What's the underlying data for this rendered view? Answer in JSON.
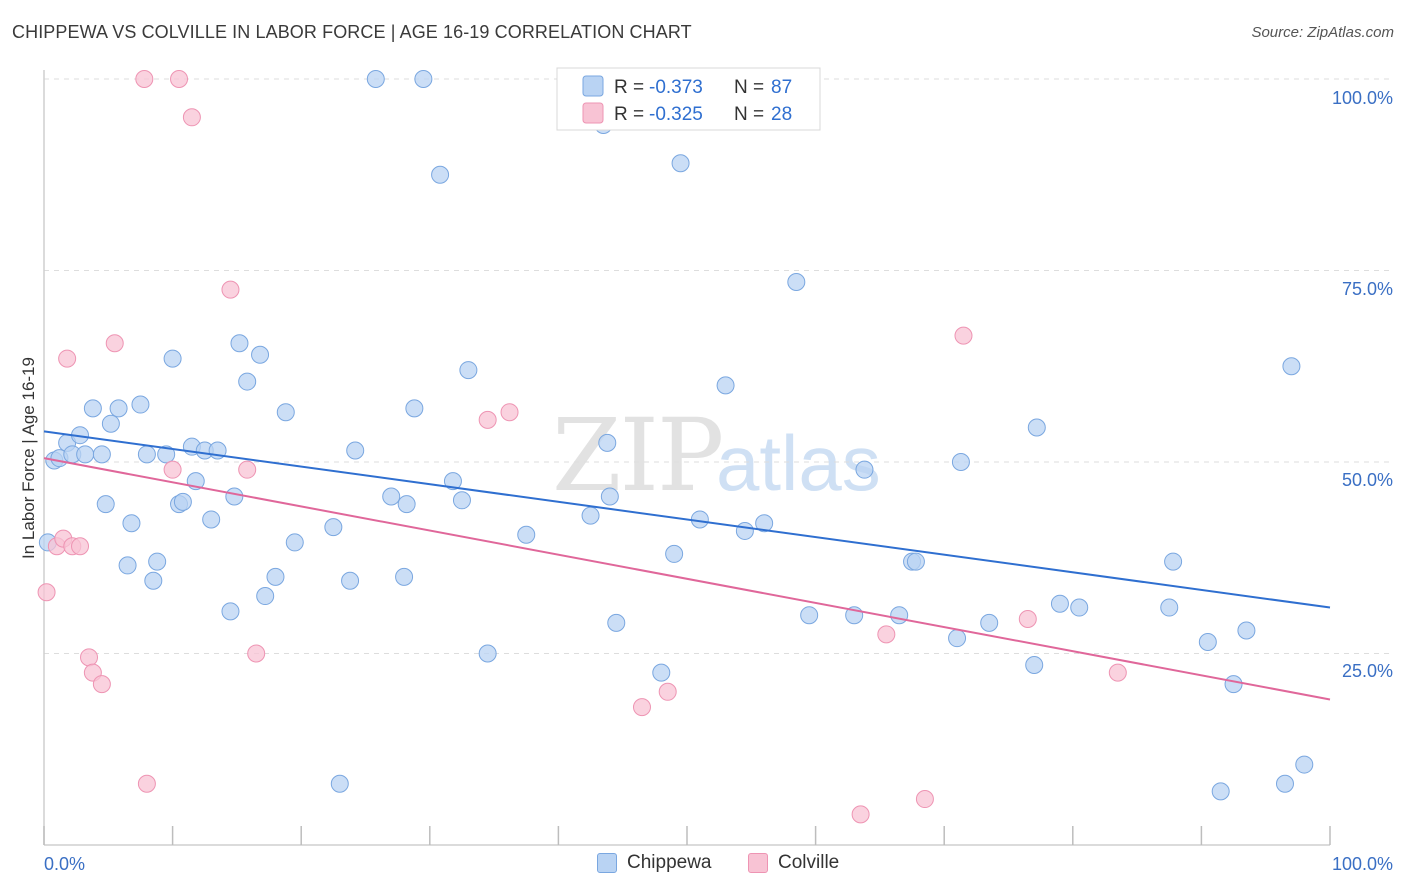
{
  "title": "CHIPPEWA VS COLVILLE IN LABOR FORCE | AGE 16-19 CORRELATION CHART",
  "source": "Source: ZipAtlas.com",
  "colors": {
    "chippewa_fill": "#b9d3f3",
    "chippewa_stroke": "#7aa7e0",
    "chippewa_line": "#2f6fd0",
    "colville_fill": "#f8c3d4",
    "colville_stroke": "#ee94b3",
    "colville_line": "#e0679a",
    "tick_text": "#3a6fc4",
    "grid": "#dddddd"
  },
  "legend": {
    "rows": [
      {
        "r_label": "R =",
        "r_value": "-0.373",
        "n_label": "N =",
        "n_value": "87"
      },
      {
        "r_label": "R =",
        "r_value": "-0.325",
        "n_label": "N =",
        "n_value": "28"
      }
    ]
  },
  "bottom_legend": {
    "items": [
      "Chippewa",
      "Colville"
    ]
  },
  "chart_data": {
    "type": "scatter",
    "ylabel": "In Labor Force | Age 16-19",
    "x_ticks": [
      "0.0%",
      "100.0%"
    ],
    "y_ticks": [
      "100.0%",
      "75.0%",
      "50.0%",
      "25.0%"
    ],
    "xlim": [
      0,
      100
    ],
    "ylim": [
      0,
      100
    ],
    "watermark": "ZIPatlas",
    "grid": "horizontal dashed",
    "legend_position": "top-center",
    "series": [
      {
        "name": "Chippewa",
        "trend": {
          "x": [
            0,
            100
          ],
          "y": [
            54.0,
            31.0
          ]
        },
        "points": [
          [
            0.3,
            39.5
          ],
          [
            0.8,
            50.2
          ],
          [
            1.2,
            50.5
          ],
          [
            1.8,
            52.5
          ],
          [
            2.2,
            51.0
          ],
          [
            2.8,
            53.5
          ],
          [
            3.2,
            51.0
          ],
          [
            3.8,
            57.0
          ],
          [
            4.5,
            51.0
          ],
          [
            4.8,
            44.5
          ],
          [
            5.2,
            55.0
          ],
          [
            5.8,
            57.0
          ],
          [
            6.5,
            36.5
          ],
          [
            6.8,
            42.0
          ],
          [
            7.5,
            57.5
          ],
          [
            8.0,
            51.0
          ],
          [
            8.5,
            34.5
          ],
          [
            8.8,
            37.0
          ],
          [
            9.5,
            51.0
          ],
          [
            10.0,
            63.5
          ],
          [
            10.5,
            44.5
          ],
          [
            10.8,
            44.8
          ],
          [
            11.5,
            52.0
          ],
          [
            11.8,
            47.5
          ],
          [
            12.5,
            51.5
          ],
          [
            13.0,
            42.5
          ],
          [
            13.5,
            51.5
          ],
          [
            14.5,
            30.5
          ],
          [
            14.8,
            45.5
          ],
          [
            15.2,
            65.5
          ],
          [
            15.8,
            60.5
          ],
          [
            16.8,
            64.0
          ],
          [
            17.2,
            32.5
          ],
          [
            18.0,
            35.0
          ],
          [
            18.8,
            56.5
          ],
          [
            19.5,
            39.5
          ],
          [
            22.5,
            41.5
          ],
          [
            23.0,
            8.0
          ],
          [
            23.8,
            34.5
          ],
          [
            24.2,
            51.5
          ],
          [
            25.8,
            100.0
          ],
          [
            27.0,
            45.5
          ],
          [
            28.0,
            35.0
          ],
          [
            28.2,
            44.5
          ],
          [
            28.8,
            57.0
          ],
          [
            29.5,
            100.0
          ],
          [
            30.8,
            87.5
          ],
          [
            31.8,
            47.5
          ],
          [
            32.5,
            45.0
          ],
          [
            33.0,
            62.0
          ],
          [
            34.5,
            25.0
          ],
          [
            37.5,
            40.5
          ],
          [
            42.5,
            43.0
          ],
          [
            43.8,
            52.5
          ],
          [
            44.0,
            45.5
          ],
          [
            44.5,
            29.0
          ],
          [
            43.5,
            94.0
          ],
          [
            48.0,
            22.5
          ],
          [
            49.0,
            38.0
          ],
          [
            49.5,
            89.0
          ],
          [
            51.0,
            42.5
          ],
          [
            53.0,
            60.0
          ],
          [
            54.5,
            41.0
          ],
          [
            56.0,
            42.0
          ],
          [
            58.5,
            73.5
          ],
          [
            59.5,
            30.0
          ],
          [
            63.0,
            30.0
          ],
          [
            63.8,
            49.0
          ],
          [
            66.5,
            30.0
          ],
          [
            67.5,
            37.0
          ],
          [
            67.8,
            37.0
          ],
          [
            71.0,
            27.0
          ],
          [
            71.3,
            50.0
          ],
          [
            73.5,
            29.0
          ],
          [
            77.0,
            23.5
          ],
          [
            77.2,
            54.5
          ],
          [
            79.0,
            31.5
          ],
          [
            80.5,
            31.0
          ],
          [
            87.5,
            31.0
          ],
          [
            87.8,
            37.0
          ],
          [
            90.5,
            26.5
          ],
          [
            91.5,
            7.0
          ],
          [
            92.5,
            21.0
          ],
          [
            93.5,
            28.0
          ],
          [
            96.5,
            8.0
          ],
          [
            97.0,
            62.5
          ],
          [
            98.0,
            10.5
          ]
        ]
      },
      {
        "name": "Colville",
        "trend": {
          "x": [
            0,
            100
          ],
          "y": [
            50.5,
            19.0
          ]
        },
        "points": [
          [
            0.2,
            33.0
          ],
          [
            1.0,
            39.0
          ],
          [
            1.5,
            40.0
          ],
          [
            1.8,
            63.5
          ],
          [
            2.2,
            39.0
          ],
          [
            2.8,
            39.0
          ],
          [
            3.5,
            24.5
          ],
          [
            3.8,
            22.5
          ],
          [
            4.5,
            21.0
          ],
          [
            5.5,
            65.5
          ],
          [
            7.8,
            100.0
          ],
          [
            8.0,
            8.0
          ],
          [
            10.0,
            49.0
          ],
          [
            10.5,
            100.0
          ],
          [
            11.5,
            95.0
          ],
          [
            14.5,
            72.5
          ],
          [
            15.8,
            49.0
          ],
          [
            16.5,
            25.0
          ],
          [
            34.5,
            55.5
          ],
          [
            36.2,
            56.5
          ],
          [
            46.5,
            18.0
          ],
          [
            48.5,
            20.0
          ],
          [
            63.5,
            4.0
          ],
          [
            65.5,
            27.5
          ],
          [
            68.5,
            6.0
          ],
          [
            71.5,
            66.5
          ],
          [
            76.5,
            29.5
          ],
          [
            83.5,
            22.5
          ]
        ]
      }
    ]
  }
}
